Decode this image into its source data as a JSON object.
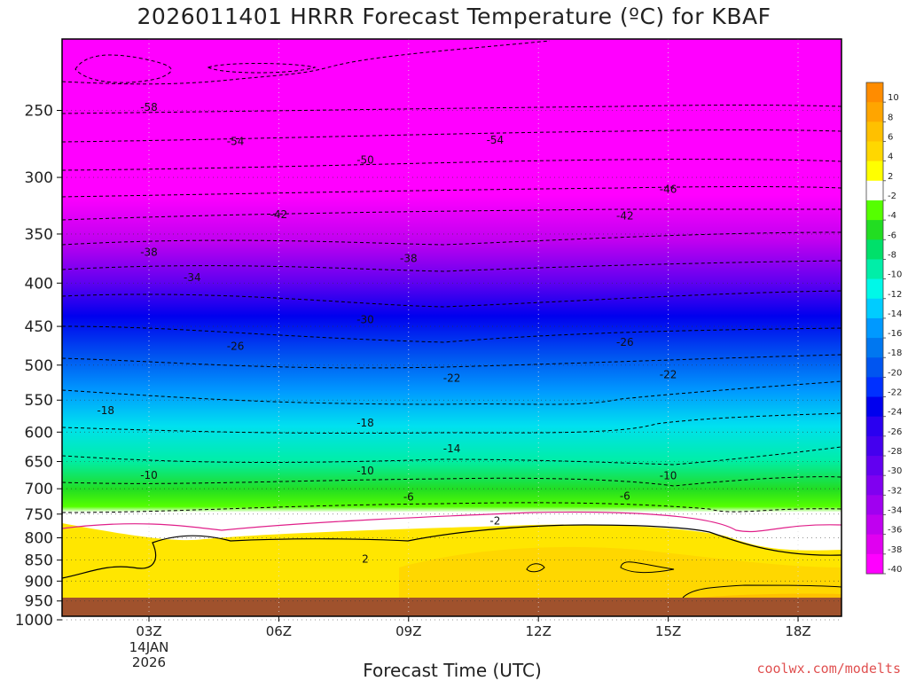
{
  "chart_data": {
    "type": "heatmap",
    "title": "2026011401 HRRR Forecast Temperature (ºC) for KBAF",
    "xlabel": "Forecast Time (UTC)",
    "ylabel": "",
    "x_ticks": [
      "03Z",
      "06Z",
      "09Z",
      "12Z",
      "15Z",
      "18Z"
    ],
    "x_date": [
      "14JAN",
      "2026"
    ],
    "y_ticks": [
      "250",
      "300",
      "350",
      "400",
      "450",
      "500",
      "550",
      "600",
      "650",
      "700",
      "750",
      "800",
      "850",
      "900",
      "950",
      "1000"
    ],
    "y_scale": "log-pressure",
    "colorbar_labels": [
      "10",
      "8",
      "6",
      "4",
      "2",
      "-2",
      "-4",
      "-6",
      "-8",
      "-10",
      "-12",
      "-14",
      "-16",
      "-18",
      "-20",
      "-22",
      "-24",
      "-26",
      "-28",
      "-30",
      "-32",
      "-34",
      "-36",
      "-38",
      "-40"
    ],
    "colorbar_colors": [
      "#ff8c00",
      "#ffa500",
      "#ffc000",
      "#ffd700",
      "#ffff00",
      "#ffffff",
      "#55ff00",
      "#22dd22",
      "#00e06a",
      "#00eea8",
      "#00f8e8",
      "#00ccff",
      "#0099ff",
      "#0077f0",
      "#0055f0",
      "#0030ff",
      "#0000ee",
      "#2a00f0",
      "#4400ee",
      "#6200f0",
      "#8000f0",
      "#a000f0",
      "#c000f0",
      "#e000f0",
      "#ff00ff"
    ],
    "contour_labels": [
      {
        "value": "-58",
        "time": "03Z",
        "pressure": 248
      },
      {
        "value": "-54",
        "time": "05Z",
        "pressure": 272
      },
      {
        "value": "-54",
        "time": "11Z",
        "pressure": 271
      },
      {
        "value": "-50",
        "time": "08Z",
        "pressure": 286
      },
      {
        "value": "-46",
        "time": "15Z",
        "pressure": 310
      },
      {
        "value": "-42",
        "time": "06Z",
        "pressure": 332
      },
      {
        "value": "-42",
        "time": "14Z",
        "pressure": 333
      },
      {
        "value": "-38",
        "time": "03Z",
        "pressure": 368
      },
      {
        "value": "-38",
        "time": "09Z",
        "pressure": 374
      },
      {
        "value": "-34",
        "time": "04Z",
        "pressure": 394
      },
      {
        "value": "-30",
        "time": "08Z",
        "pressure": 442
      },
      {
        "value": "-26",
        "time": "05Z",
        "pressure": 475
      },
      {
        "value": "-26",
        "time": "14Z",
        "pressure": 470
      },
      {
        "value": "-22",
        "time": "10Z",
        "pressure": 518
      },
      {
        "value": "-22",
        "time": "15Z",
        "pressure": 513
      },
      {
        "value": "-18",
        "time": "02Z",
        "pressure": 566
      },
      {
        "value": "-18",
        "time": "08Z",
        "pressure": 585
      },
      {
        "value": "-14",
        "time": "10Z",
        "pressure": 628
      },
      {
        "value": "-10",
        "time": "03Z",
        "pressure": 675
      },
      {
        "value": "-10",
        "time": "08Z",
        "pressure": 667
      },
      {
        "value": "-10",
        "time": "15Z",
        "pressure": 676
      },
      {
        "value": "-6",
        "time": "09Z",
        "pressure": 716
      },
      {
        "value": "-6",
        "time": "14Z",
        "pressure": 714
      },
      {
        "value": "-2",
        "time": "11Z",
        "pressure": 764
      },
      {
        "value": "2",
        "time": "08Z",
        "pressure": 848
      }
    ],
    "credit": "coolwx.com/modelts"
  }
}
